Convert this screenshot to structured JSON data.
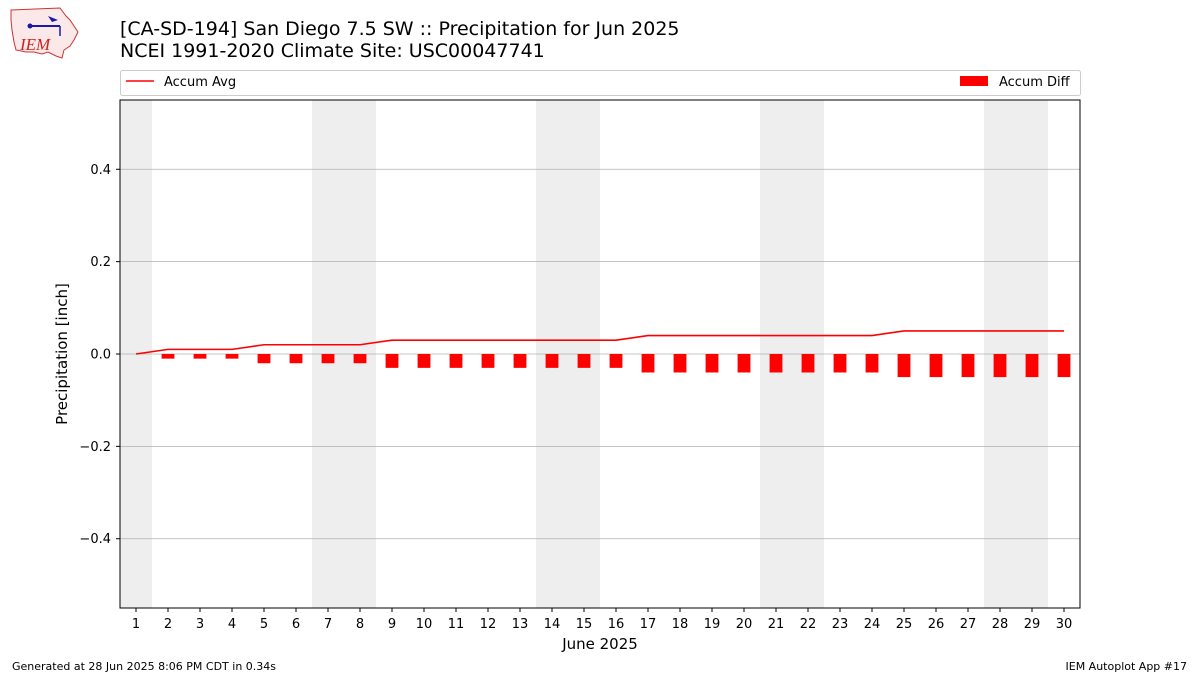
{
  "header": {
    "title_line1": "[CA-SD-194] San Diego 7.5 SW :: Precipitation for Jun 2025",
    "title_line2": "NCEI 1991-2020 Climate Site: USC00047741",
    "logo_text": "IEM"
  },
  "footer": {
    "generated": "Generated at 28 Jun 2025 8:06 PM CDT in 0.34s",
    "app": "IEM Autoplot App #17"
  },
  "chart_data": {
    "type": "bar",
    "xlabel": "June 2025",
    "ylabel": "Precipitation [inch]",
    "ylim": [
      -0.55,
      0.55
    ],
    "yticks": [
      -0.4,
      -0.2,
      0.0,
      0.2,
      0.4
    ],
    "ytick_labels": [
      "−0.4",
      "−0.2",
      "0.0",
      "0.2",
      "0.4"
    ],
    "xlim": [
      0.5,
      30.5
    ],
    "categories": [
      "1",
      "2",
      "3",
      "4",
      "5",
      "6",
      "7",
      "8",
      "9",
      "10",
      "11",
      "12",
      "13",
      "14",
      "15",
      "16",
      "17",
      "18",
      "19",
      "20",
      "21",
      "22",
      "23",
      "24",
      "25",
      "26",
      "27",
      "28",
      "29",
      "30"
    ],
    "weekend_days": [
      1,
      7,
      8,
      14,
      15,
      21,
      22,
      28,
      29
    ],
    "grid": "horizontal",
    "legend_placement": "top",
    "series": [
      {
        "name": "Accum Avg",
        "kind": "line",
        "color": "#ff0000",
        "values": [
          0.0,
          0.01,
          0.01,
          0.01,
          0.02,
          0.02,
          0.02,
          0.02,
          0.03,
          0.03,
          0.03,
          0.03,
          0.03,
          0.03,
          0.03,
          0.03,
          0.04,
          0.04,
          0.04,
          0.04,
          0.04,
          0.04,
          0.04,
          0.04,
          0.05,
          0.05,
          0.05,
          0.05,
          0.05,
          0.05
        ]
      },
      {
        "name": "Accum Diff",
        "kind": "bar",
        "color": "#ff0000",
        "values": [
          0.0,
          -0.01,
          -0.01,
          -0.01,
          -0.02,
          -0.02,
          -0.02,
          -0.02,
          -0.03,
          -0.03,
          -0.03,
          -0.03,
          -0.03,
          -0.03,
          -0.03,
          -0.03,
          -0.04,
          -0.04,
          -0.04,
          -0.04,
          -0.04,
          -0.04,
          -0.04,
          -0.04,
          -0.05,
          -0.05,
          -0.05,
          -0.05,
          -0.05,
          -0.05
        ]
      }
    ],
    "colors": {
      "weekend_band": "#eeeeee",
      "grid": "#b0b0b0",
      "axis": "#000000"
    }
  }
}
